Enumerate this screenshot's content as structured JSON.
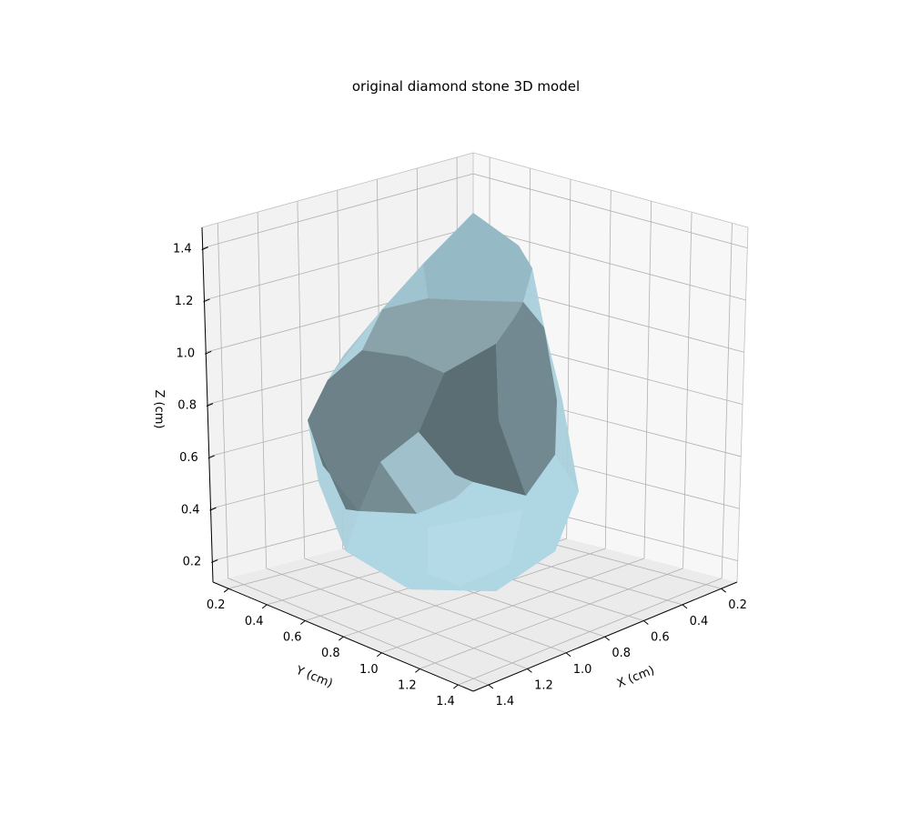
{
  "chart_data": {
    "type": "surface3d",
    "title": "original diamond stone 3D model",
    "xlabel": "X (cm)",
    "ylabel": "Y (cm)",
    "zlabel": "Z (cm)",
    "xticks": [
      "0.2",
      "0.4",
      "0.6",
      "0.8",
      "1.0",
      "1.2",
      "1.4"
    ],
    "yticks": [
      "0.2",
      "0.4",
      "0.6",
      "0.8",
      "1.0",
      "1.2",
      "1.4"
    ],
    "zticks": [
      "0.2",
      "0.4",
      "0.6",
      "0.8",
      "1.0",
      "1.2",
      "1.4"
    ],
    "grid": true,
    "surface_color": "#add8e6",
    "pane_colors": {
      "back_left": "#f2f2f2",
      "back_right": "#f7f7f7",
      "floor": "#ebebeb"
    }
  }
}
